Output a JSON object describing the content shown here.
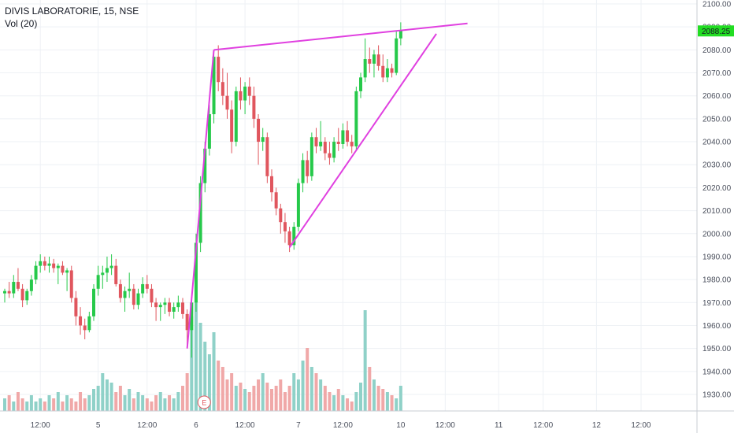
{
  "header": {
    "title": "DIVIS LABORATORIE, 15, NSE",
    "indicator": "Vol (20)"
  },
  "price_tag": {
    "value": 2088.25,
    "label": "2088.25",
    "color": "#22dd22"
  },
  "event_marker": {
    "label": "E"
  },
  "colors": {
    "up": "#26c94a",
    "down": "#e0565e",
    "vol_up": "#8fd1c8",
    "vol_down": "#f0a8a8",
    "trendline": "#e040e0",
    "grid": "#eef1f5",
    "axis_text": "#4a4f5c"
  },
  "chart_data": {
    "type": "candlestick",
    "title": "DIVIS LABORATORIE, 15, NSE",
    "interval": "15",
    "exchange": "NSE",
    "y_axis": {
      "side": "right",
      "ylim": [
        1920,
        2102
      ],
      "ticks": [
        1930,
        1940,
        1950,
        1960,
        1970,
        1980,
        1990,
        2000,
        2010,
        2020,
        2030,
        2040,
        2050,
        2060,
        2070,
        2080,
        2090,
        2100
      ],
      "tick_labels": [
        "1930.00",
        "1940.00",
        "1950.00",
        "1960.00",
        "1970.00",
        "1980.00",
        "1990.00",
        "2000.00",
        "2010.00",
        "2020.00",
        "2030.00",
        "2040.00",
        "2050.00",
        "2060.00",
        "2070.00",
        "2080.00",
        "2090.00",
        "2100.00"
      ]
    },
    "x_axis": {
      "bar_range": [
        0,
        145
      ],
      "tick_labels": [
        {
          "bar": 8,
          "label": "12:00"
        },
        {
          "bar": 21,
          "label": "5"
        },
        {
          "bar": 32,
          "label": "12:00"
        },
        {
          "bar": 43,
          "label": "6"
        },
        {
          "bar": 54,
          "label": "12:00"
        },
        {
          "bar": 66,
          "label": "7"
        },
        {
          "bar": 76,
          "label": "12:00"
        },
        {
          "bar": 89,
          "label": "10"
        },
        {
          "bar": 99,
          "label": "12:00"
        },
        {
          "bar": 111,
          "label": "11"
        },
        {
          "bar": 121,
          "label": "12:00"
        },
        {
          "bar": 133,
          "label": "12"
        },
        {
          "bar": 143,
          "label": "12:00"
        }
      ]
    },
    "grid": true,
    "legend": "none",
    "candles": [
      [
        1974,
        1976,
        1970,
        1975
      ],
      [
        1975,
        1979,
        1972,
        1974
      ],
      [
        1974,
        1982,
        1972,
        1979
      ],
      [
        1979,
        1985,
        1975,
        1976
      ],
      [
        1976,
        1978,
        1968,
        1971
      ],
      [
        1971,
        1976,
        1969,
        1975
      ],
      [
        1975,
        1982,
        1973,
        1980
      ],
      [
        1980,
        1988,
        1978,
        1986
      ],
      [
        1986,
        1991,
        1983,
        1988
      ],
      [
        1988,
        1990,
        1984,
        1986
      ],
      [
        1986,
        1990,
        1983,
        1987
      ],
      [
        1987,
        1989,
        1983,
        1985
      ],
      [
        1985,
        1987,
        1978,
        1986
      ],
      [
        1986,
        1988,
        1982,
        1983
      ],
      [
        1983,
        1985,
        1975,
        1984
      ],
      [
        1984,
        1986,
        1970,
        1972
      ],
      [
        1972,
        1975,
        1960,
        1964
      ],
      [
        1964,
        1968,
        1956,
        1960
      ],
      [
        1960,
        1963,
        1954,
        1958
      ],
      [
        1958,
        1966,
        1957,
        1964
      ],
      [
        1964,
        1978,
        1962,
        1976
      ],
      [
        1976,
        1986,
        1973,
        1982
      ],
      [
        1982,
        1986,
        1976,
        1983
      ],
      [
        1983,
        1990,
        1979,
        1985
      ],
      [
        1985,
        1991,
        1982,
        1986
      ],
      [
        1986,
        1989,
        1977,
        1978
      ],
      [
        1978,
        1980,
        1970,
        1972
      ],
      [
        1972,
        1977,
        1966,
        1975
      ],
      [
        1975,
        1983,
        1972,
        1976
      ],
      [
        1976,
        1978,
        1967,
        1969
      ],
      [
        1969,
        1976,
        1967,
        1974
      ],
      [
        1974,
        1981,
        1972,
        1978
      ],
      [
        1978,
        1982,
        1974,
        1976
      ],
      [
        1976,
        1978,
        1968,
        1970
      ],
      [
        1970,
        1972,
        1962,
        1968
      ],
      [
        1968,
        1970,
        1962,
        1969
      ],
      [
        1969,
        1972,
        1965,
        1970
      ],
      [
        1970,
        1972,
        1964,
        1966
      ],
      [
        1966,
        1970,
        1963,
        1968
      ],
      [
        1968,
        1973,
        1966,
        1970
      ],
      [
        1970,
        1972,
        1963,
        1965
      ],
      [
        1965,
        1967,
        1950,
        1958
      ],
      [
        1958,
        1972,
        1946,
        1970
      ],
      [
        1970,
        2000,
        1966,
        1996
      ],
      [
        1996,
        2025,
        1992,
        2022
      ],
      [
        2022,
        2040,
        2018,
        2037
      ],
      [
        2037,
        2056,
        2034,
        2052
      ],
      [
        2052,
        2080,
        2048,
        2077
      ],
      [
        2077,
        2082,
        2062,
        2066
      ],
      [
        2066,
        2072,
        2056,
        2060
      ],
      [
        2060,
        2070,
        2050,
        2054
      ],
      [
        2054,
        2058,
        2035,
        2040
      ],
      [
        2040,
        2064,
        2038,
        2062
      ],
      [
        2062,
        2068,
        2054,
        2058
      ],
      [
        2058,
        2066,
        2052,
        2064
      ],
      [
        2064,
        2068,
        2056,
        2060
      ],
      [
        2060,
        2064,
        2046,
        2050
      ],
      [
        2050,
        2052,
        2030,
        2040
      ],
      [
        2040,
        2046,
        2036,
        2042
      ],
      [
        2042,
        2044,
        2022,
        2025
      ],
      [
        2025,
        2028,
        2014,
        2018
      ],
      [
        2018,
        2020,
        2008,
        2011
      ],
      [
        2011,
        2013,
        2000,
        2005
      ],
      [
        2005,
        2009,
        1996,
        2001
      ],
      [
        2001,
        2003,
        1992,
        1995
      ],
      [
        1995,
        2005,
        1993,
        2003
      ],
      [
        2003,
        2024,
        2001,
        2022
      ],
      [
        2022,
        2035,
        2018,
        2032
      ],
      [
        2032,
        2036,
        2022,
        2025
      ],
      [
        2025,
        2044,
        2023,
        2042
      ],
      [
        2042,
        2046,
        2035,
        2038
      ],
      [
        2038,
        2049,
        2036,
        2040
      ],
      [
        2040,
        2042,
        2032,
        2035
      ],
      [
        2035,
        2040,
        2030,
        2033
      ],
      [
        2033,
        2042,
        2031,
        2040
      ],
      [
        2040,
        2046,
        2036,
        2039
      ],
      [
        2039,
        2048,
        2037,
        2045
      ],
      [
        2045,
        2049,
        2038,
        2040
      ],
      [
        2040,
        2043,
        2035,
        2038
      ],
      [
        2038,
        2064,
        2036,
        2062
      ],
      [
        2062,
        2070,
        2059,
        2068
      ],
      [
        2068,
        2085,
        2066,
        2076
      ],
      [
        2076,
        2081,
        2070,
        2074
      ],
      [
        2074,
        2080,
        2068,
        2078
      ],
      [
        2078,
        2082,
        2071,
        2073
      ],
      [
        2073,
        2078,
        2066,
        2068
      ],
      [
        2068,
        2076,
        2066,
        2072
      ],
      [
        2072,
        2074,
        2068,
        2070
      ],
      [
        2070,
        2088,
        2069,
        2085
      ],
      [
        2085,
        2092,
        2082,
        2088.25
      ]
    ],
    "volume": [
      4,
      5,
      3,
      6,
      4,
      3,
      5,
      3,
      4,
      3,
      5,
      4,
      6,
      3,
      5,
      4,
      3,
      6,
      4,
      5,
      7,
      8,
      12,
      10,
      9,
      6,
      8,
      5,
      7,
      4,
      6,
      5,
      4,
      3,
      5,
      6,
      4,
      5,
      4,
      6,
      8,
      12,
      30,
      35,
      28,
      22,
      18,
      25,
      16,
      14,
      10,
      12,
      8,
      9,
      7,
      6,
      8,
      10,
      12,
      9,
      7,
      8,
      10,
      6,
      8,
      12,
      10,
      16,
      20,
      14,
      12,
      10,
      8,
      6,
      5,
      7,
      5,
      4,
      3,
      6,
      9,
      32,
      14,
      10,
      8,
      7,
      6,
      5,
      4,
      8
    ],
    "trendlines": [
      {
        "from": [
          41,
          1950
        ],
        "to": [
          47,
          2080
        ],
        "label": ""
      },
      {
        "from": [
          47,
          2080
        ],
        "to": [
          104,
          2091.5
        ],
        "label": ""
      },
      {
        "from": [
          64,
          1994
        ],
        "to": [
          97,
          2087
        ],
        "label": ""
      }
    ]
  }
}
